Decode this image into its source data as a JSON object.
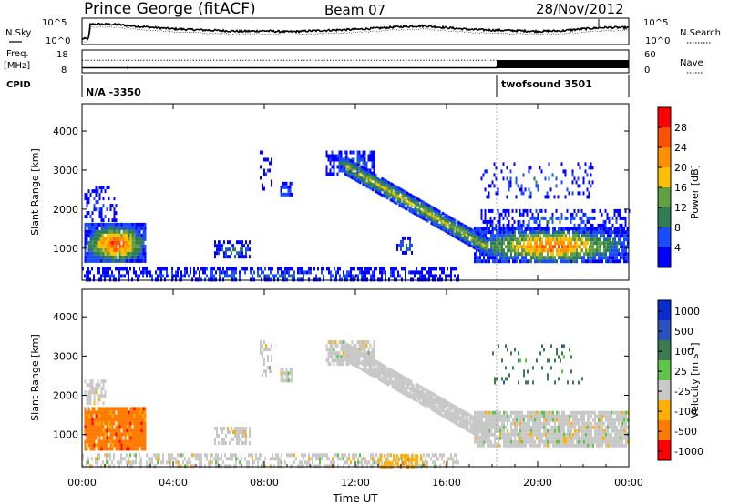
{
  "header": {
    "station": "Prince George (fitACF)",
    "beam": "Beam 07",
    "date": "28/Nov/2012"
  },
  "side_labels": {
    "nsky": "N.Sky",
    "freq_line1": "Freq.",
    "freq_line2": "[MHz]",
    "cpid": "CPID",
    "nsearch": "N.Search",
    "nave": "Nave"
  },
  "colors": {
    "power_scale": [
      "#0000ff",
      "#1a4cff",
      "#2e7d55",
      "#5fa040",
      "#ffc000",
      "#ff9000",
      "#ff5000",
      "#ff0000"
    ],
    "velocity_scale": [
      "#0a2bd0",
      "#2a52be",
      "#3e7a50",
      "#5ec44a",
      "#c8c8c8",
      "#ffb000",
      "#ff7a00",
      "#ff0000"
    ],
    "ground_scatter": "#bebebe"
  },
  "chart_data": [
    {
      "type": "line",
      "name_panel": "noise",
      "left_ticks": [
        "10^5",
        "10^0"
      ],
      "right_ticks": [
        "10^5",
        "10^0"
      ],
      "description_series": "N.Sky (solid) and N.Search (dotted) noise levels",
      "x_range_hours": [
        0,
        24
      ],
      "sky_profile": [
        [
          0.0,
          0.2
        ],
        [
          0.3,
          0.2
        ],
        [
          0.35,
          0.78
        ],
        [
          0.6,
          0.8
        ],
        [
          1.5,
          0.78
        ],
        [
          2.5,
          0.7
        ],
        [
          4,
          0.6
        ],
        [
          5.5,
          0.55
        ],
        [
          7,
          0.5
        ],
        [
          8,
          0.52
        ],
        [
          9,
          0.48
        ],
        [
          10,
          0.52
        ],
        [
          11,
          0.55
        ],
        [
          12,
          0.58
        ],
        [
          13,
          0.63
        ],
        [
          13.5,
          0.66
        ],
        [
          14.2,
          0.7
        ],
        [
          15,
          0.72
        ],
        [
          16,
          0.65
        ],
        [
          17,
          0.58
        ],
        [
          18,
          0.55
        ],
        [
          19,
          0.53
        ],
        [
          20,
          0.5
        ],
        [
          21,
          0.52
        ],
        [
          22,
          0.6
        ],
        [
          23,
          0.66
        ],
        [
          24,
          0.65
        ]
      ]
    },
    {
      "type": "line",
      "name_panel": "frequency",
      "left_ticks": [
        "18",
        "8"
      ],
      "right_ticks": [
        "60",
        "0"
      ],
      "freq_mhz": [
        [
          0,
          10.2
        ],
        [
          18.2,
          10.2
        ],
        [
          18.2,
          10.6
        ],
        [
          24,
          10.6
        ]
      ],
      "nave_dotted_level": 0.55,
      "nave_solid_start_hour": 18.2
    },
    {
      "type": "table",
      "name_panel": "cpid",
      "segments": [
        {
          "label": "N/A  -3350",
          "start_hour": 0,
          "end_hour": 18.2
        },
        {
          "label": "twofsound  3501",
          "start_hour": 18.2,
          "end_hour": 24
        }
      ]
    },
    {
      "type": "heatmap",
      "name_panel": "power",
      "ylabel": "Slant Range [km]",
      "y_ticks": [
        1000,
        2000,
        3000,
        4000
      ],
      "ylim": [
        180,
        4700
      ],
      "x_range_hours": [
        0,
        24
      ],
      "colorbar_label": "Power [dB]",
      "colorbar_ticks": [
        4,
        8,
        12,
        16,
        20,
        24,
        28
      ],
      "colorbar_range": [
        0,
        32
      ],
      "blobs": [
        {
          "t0": 0.1,
          "t1": 2.8,
          "r0": 650,
          "r1": 1650,
          "peak": 30,
          "density": 0.95
        },
        {
          "t0": 0.1,
          "t1": 1.5,
          "r0": 1700,
          "r1": 2600,
          "peak": 6,
          "density": 0.35
        },
        {
          "t0": 5.8,
          "t1": 7.4,
          "r0": 800,
          "r1": 1200,
          "peak": 10,
          "density": 0.5
        },
        {
          "t0": 7.8,
          "t1": 8.3,
          "r0": 2500,
          "r1": 3500,
          "peak": 5,
          "density": 0.3
        },
        {
          "t0": 8.7,
          "t1": 9.2,
          "r0": 2350,
          "r1": 2700,
          "peak": 10,
          "density": 0.8
        },
        {
          "t0": 10.7,
          "t1": 12.8,
          "r0": 2900,
          "r1": 3500,
          "peak": 10,
          "density": 0.7
        },
        {
          "t0": 13.8,
          "t1": 14.5,
          "r0": 900,
          "r1": 1300,
          "peak": 12,
          "density": 0.6
        },
        {
          "t0": 17.2,
          "t1": 24.0,
          "r0": 650,
          "r1": 1550,
          "peak": 27,
          "density": 0.9
        },
        {
          "t0": 17.5,
          "t1": 24.0,
          "r0": 1500,
          "r1": 2000,
          "peak": 8,
          "density": 0.4
        },
        {
          "t0": 17.5,
          "t1": 22.5,
          "r0": 2300,
          "r1": 3200,
          "peak": 8,
          "density": 0.15
        },
        {
          "t0": 0.0,
          "t1": 16.5,
          "r0": 180,
          "r1": 520,
          "peak": 8,
          "density": 0.55
        }
      ],
      "tail": {
        "t0": 11.5,
        "t1": 17.8,
        "r_start": 3150,
        "r_end": 1050,
        "peak": 16
      }
    },
    {
      "type": "heatmap",
      "name_panel": "velocity",
      "ylabel": "Slant Range [km]",
      "y_ticks": [
        1000,
        2000,
        3000,
        4000
      ],
      "ylim": [
        180,
        4700
      ],
      "x_range_hours": [
        0,
        24
      ],
      "xlabel": "Time UT",
      "x_tick_labels": [
        "00:00",
        "04:00",
        "08:00",
        "12:00",
        "16:00",
        "20:00",
        "00:00"
      ],
      "colorbar_label": "Velocity [m s^-1]",
      "colorbar_ticks": [
        "1000",
        "500",
        "100",
        "25",
        "-25",
        "-100",
        "-500",
        "-1000"
      ],
      "blobs": [
        {
          "t0": 0.1,
          "t1": 2.8,
          "r0": 650,
          "r1": 1700,
          "color_index": 6,
          "density": 0.95
        },
        {
          "t0": 0.1,
          "t1": 1.0,
          "r0": 1800,
          "r1": 2400,
          "color_index": 4,
          "density": 0.6
        },
        {
          "t0": 5.8,
          "t1": 7.4,
          "r0": 800,
          "r1": 1200,
          "color_index": 4,
          "density": 0.5
        },
        {
          "t0": 7.8,
          "t1": 8.3,
          "r0": 2500,
          "r1": 3400,
          "color_index": 4,
          "density": 0.35
        },
        {
          "t0": 8.7,
          "t1": 9.2,
          "r0": 2350,
          "r1": 2700,
          "color_index": 4,
          "density": 0.85
        },
        {
          "t0": 10.7,
          "t1": 12.8,
          "r0": 2800,
          "r1": 3400,
          "color_index": 4,
          "density": 0.75
        },
        {
          "t0": 17.2,
          "t1": 24.0,
          "r0": 700,
          "r1": 1600,
          "color_index": 4,
          "density": 0.9
        },
        {
          "t0": 18.0,
          "t1": 22.0,
          "r0": 2300,
          "r1": 3300,
          "color_index": 2,
          "density": 0.12
        },
        {
          "t0": 0.0,
          "t1": 16.5,
          "r0": 180,
          "r1": 520,
          "color_index": 4,
          "density": 0.5
        },
        {
          "t0": 13.0,
          "t1": 15.0,
          "r0": 200,
          "r1": 500,
          "color_index": 5,
          "density": 0.5
        }
      ],
      "tail": {
        "t0": 11.5,
        "t1": 17.8,
        "r_start": 3150,
        "r_end": 1050,
        "color_index": 4
      }
    }
  ]
}
